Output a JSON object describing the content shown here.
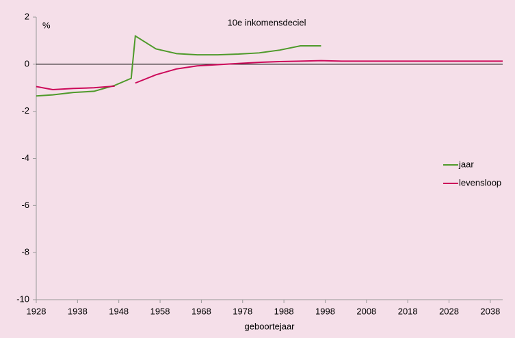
{
  "chart_data": {
    "type": "line",
    "title": "10e inkomensdeciel",
    "y_label": "%",
    "x_label": "geboortejaar",
    "x": [
      1928,
      1932,
      1937,
      1942,
      1947,
      1951,
      1952,
      1957,
      1962,
      1967,
      1972,
      1977,
      1982,
      1987,
      1992,
      1997,
      2002,
      2041
    ],
    "series": [
      {
        "name": "jaar",
        "color": "#4e9a2a",
        "values": [
          -1.35,
          -1.3,
          -1.2,
          -1.15,
          -0.9,
          -0.6,
          1.2,
          0.65,
          0.45,
          0.4,
          0.4,
          0.43,
          0.48,
          0.6,
          0.78,
          0.78,
          null,
          null
        ]
      },
      {
        "name": "levensloop",
        "color": "#cc0a5a",
        "values": [
          -0.95,
          -1.08,
          -1.03,
          -1.0,
          -0.93,
          null,
          -0.8,
          -0.45,
          -0.2,
          -0.07,
          -0.02,
          0.03,
          0.08,
          0.11,
          0.13,
          0.15,
          0.13,
          0.13
        ]
      }
    ],
    "xlim": [
      1928,
      2041
    ],
    "xticks": [
      1928,
      1938,
      1948,
      1958,
      1968,
      1978,
      1988,
      1998,
      2008,
      2018,
      2028,
      2038
    ],
    "ylim": [
      -10,
      2
    ],
    "yticks": [
      -10,
      -8,
      -6,
      -4,
      -2,
      0,
      2
    ],
    "zero_line": true,
    "legend": "right"
  }
}
